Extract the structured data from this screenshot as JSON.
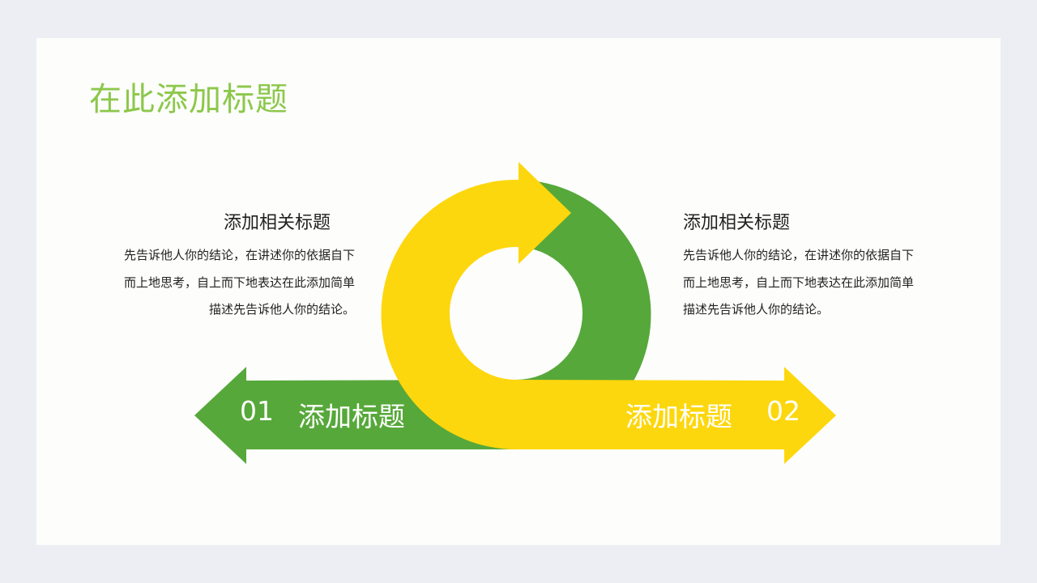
{
  "slide": {
    "title": "在此添加标题",
    "colors": {
      "green": "#56a83a",
      "yellow": "#fdd70d",
      "title": "#8cc84b"
    }
  },
  "left_block": {
    "heading": "添加相关标题",
    "lines": [
      "先告诉他人你的结论，在讲述你的依据自下",
      "而上地思考，自上而下地表达在此添加简单",
      "描述先告诉他人你的结论。"
    ]
  },
  "right_block": {
    "heading": "添加相关标题",
    "lines": [
      "先告诉他人你的结论，在讲述你的依据自下",
      "而上地思考，自上而下地表达在此添加简单",
      "描述先告诉他人你的结论。"
    ]
  },
  "arrows": {
    "left": {
      "number": "01",
      "label": "添加标题"
    },
    "right": {
      "number": "02",
      "label": "添加标题"
    }
  }
}
